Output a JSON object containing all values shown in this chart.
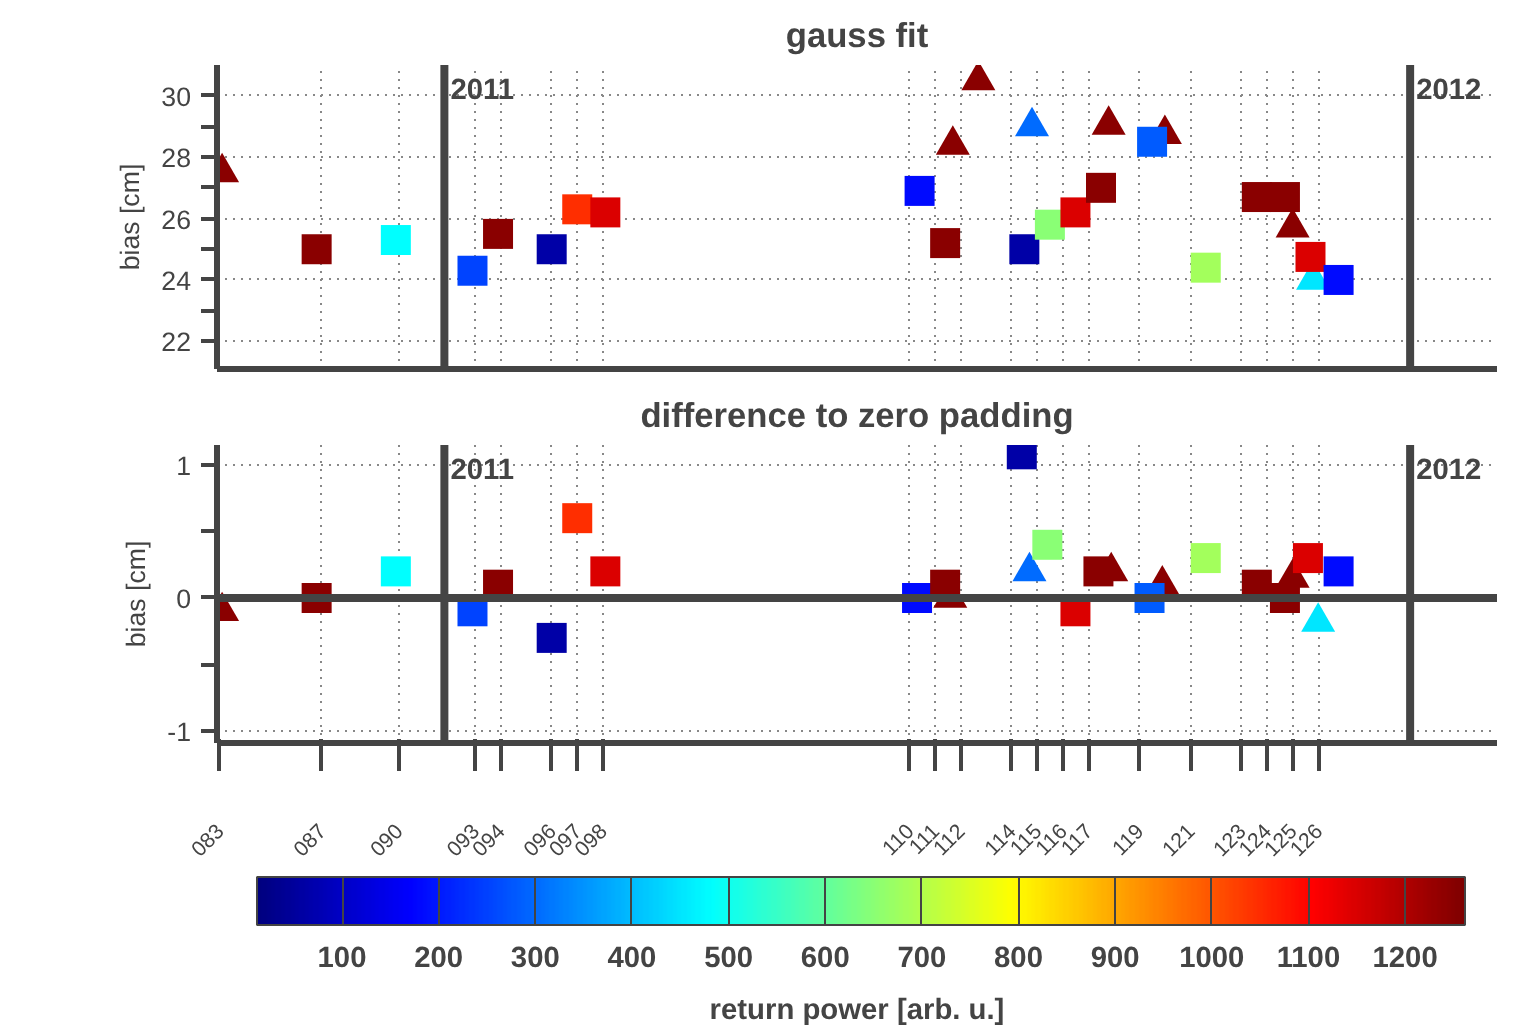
{
  "chart_data": [
    {
      "type": "scatter",
      "title": "gauss fit",
      "ylabel": "bias [cm]",
      "xlim": [
        82.9,
        133.0
      ],
      "ylim": [
        21.1,
        31.0
      ],
      "xticks": [
        {
          "value": 83,
          "label": null
        },
        {
          "value": 87,
          "label": null
        },
        {
          "value": 90,
          "label": null
        },
        {
          "value": 93,
          "label": null
        },
        {
          "value": 94,
          "label": null
        },
        {
          "value": 96,
          "label": null
        },
        {
          "value": 97,
          "label": null
        },
        {
          "value": 98,
          "label": null
        },
        {
          "value": 110,
          "label": null
        },
        {
          "value": 111,
          "label": null
        },
        {
          "value": 112,
          "label": null
        },
        {
          "value": 114,
          "label": null
        },
        {
          "value": 115,
          "label": null
        },
        {
          "value": 116,
          "label": null
        },
        {
          "value": 117,
          "label": null
        },
        {
          "value": 119,
          "label": null
        },
        {
          "value": 121,
          "label": null
        },
        {
          "value": 123,
          "label": null
        },
        {
          "value": 124,
          "label": null
        },
        {
          "value": 125,
          "label": null
        },
        {
          "value": 126,
          "label": null
        }
      ],
      "yticks": [
        22,
        {
          "value": 23,
          "label": null
        },
        24,
        {
          "value": 25,
          "label": null
        },
        26,
        {
          "value": 27,
          "label": null
        },
        28,
        {
          "value": 29,
          "label": null
        },
        30
      ],
      "tick_labels": "y",
      "grid": true,
      "ref_lines": [
        {
          "axis": "x",
          "value": 91.8,
          "color": "#444444"
        },
        {
          "axis": "x",
          "value": 129.6,
          "color": "#444444"
        }
      ],
      "annotations": [
        "2011",
        "2012"
      ],
      "series": [
        {
          "marker": "triangle",
          "x": [
            83.1,
            111.7,
            112.7,
            114.8,
            117.8,
            120.0,
            125.0,
            125.8
          ],
          "values": [
            27.5,
            28.4,
            30.5,
            29.0,
            29.05,
            28.75,
            25.7,
            24.0
          ],
          "colors": [
            "#8a0000",
            "#8a0000",
            "#8a0000",
            "#006bff",
            "#8a0000",
            "#8a0000",
            "#8a0000",
            "#00e6ff"
          ]
        },
        {
          "marker": "square",
          "x": [
            86.8,
            89.9,
            92.9,
            93.9,
            96.0,
            97.0,
            98.1,
            110.4,
            111.4,
            114.5,
            115.5,
            116.5,
            117.5,
            119.5,
            121.6,
            123.6,
            124.7,
            125.7,
            126.8
          ],
          "values": [
            25.0,
            25.3,
            24.3,
            25.5,
            25.0,
            26.3,
            26.2,
            26.9,
            25.2,
            25.0,
            25.8,
            26.2,
            27.0,
            28.5,
            24.4,
            26.7,
            26.7,
            24.75,
            24.0
          ],
          "colors": [
            "#8a0000",
            "#00ffff",
            "#0043ff",
            "#8a0000",
            "#0000a7",
            "#ff2e00",
            "#db0000",
            "#000aff",
            "#8a0000",
            "#0000a7",
            "#8aff75",
            "#db0000",
            "#8a0000",
            "#005bff",
            "#a3ff5c",
            "#8a0000",
            "#8a0000",
            "#db0000",
            "#000aff"
          ]
        }
      ]
    },
    {
      "type": "scatter",
      "title": "difference to zero padding",
      "ylabel": "bias [cm]",
      "xlim": [
        82.9,
        133.0
      ],
      "ylim": [
        -1.09,
        1.15
      ],
      "xticks": [
        {
          "value": 83,
          "label": "083"
        },
        {
          "value": 87,
          "label": "087"
        },
        {
          "value": 90,
          "label": "090"
        },
        {
          "value": 93,
          "label": "093"
        },
        {
          "value": 94,
          "label": "094"
        },
        {
          "value": 96,
          "label": "096"
        },
        {
          "value": 97,
          "label": "097"
        },
        {
          "value": 98,
          "label": "098"
        },
        {
          "value": 110,
          "label": "110"
        },
        {
          "value": 111,
          "label": "111"
        },
        {
          "value": 112,
          "label": "112"
        },
        {
          "value": 114,
          "label": "114"
        },
        {
          "value": 115,
          "label": "115"
        },
        {
          "value": 116,
          "label": "116"
        },
        {
          "value": 117,
          "label": "117"
        },
        {
          "value": 119,
          "label": "119"
        },
        {
          "value": 121,
          "label": "121"
        },
        {
          "value": 123,
          "label": "123"
        },
        {
          "value": 124,
          "label": "124"
        },
        {
          "value": 125,
          "label": "125"
        },
        {
          "value": 126,
          "label": "126"
        }
      ],
      "yticks": [
        -1,
        {
          "value": -0.5,
          "label": null
        },
        0,
        {
          "value": 0.5,
          "label": null
        },
        1
      ],
      "grid": true,
      "clim": [
        12,
        1262
      ],
      "cticks": [
        100,
        200,
        300,
        400,
        500,
        600,
        700,
        800,
        900,
        1000,
        1100,
        1200
      ],
      "clabel": "return power [arb. u.]",
      "ref_lines": [
        {
          "axis": "x",
          "value": 91.8,
          "color": "#444444"
        },
        {
          "axis": "x",
          "value": 129.6,
          "color": "#444444"
        },
        {
          "axis": "y",
          "value": 0,
          "color": "#444444"
        }
      ],
      "annotations": [
        "2011",
        "2012"
      ],
      "series": [
        {
          "marker": "triangle",
          "x": [
            83.1,
            111.6,
            114.7,
            117.9,
            119.9,
            125.0,
            126.0
          ],
          "values": [
            -0.1,
            0.0,
            0.2,
            0.2,
            0.1,
            0.15,
            -0.18
          ],
          "colors": [
            "#8a0000",
            "#8a0000",
            "#006bff",
            "#8a0000",
            "#8a0000",
            "#8a0000",
            "#00e6ff"
          ]
        },
        {
          "marker": "square",
          "x": [
            86.8,
            89.9,
            92.9,
            93.9,
            96.0,
            97.0,
            98.1,
            110.3,
            111.4,
            114.4,
            115.4,
            116.5,
            117.4,
            119.4,
            121.6,
            123.6,
            124.7,
            125.6,
            126.8
          ],
          "values": [
            0.0,
            0.2,
            -0.1,
            0.1,
            -0.3,
            0.6,
            0.2,
            0.0,
            0.1,
            1.08,
            0.4,
            -0.1,
            0.2,
            0.0,
            0.3,
            0.1,
            0.0,
            0.3,
            0.2
          ],
          "colors": [
            "#8a0000",
            "#00ffff",
            "#0043ff",
            "#8a0000",
            "#0000a7",
            "#ff2e00",
            "#db0000",
            "#000aff",
            "#8a0000",
            "#0000a7",
            "#8aff75",
            "#db0000",
            "#8a0000",
            "#005bff",
            "#a3ff5c",
            "#8a0000",
            "#8a0000",
            "#db0000",
            "#000aff"
          ]
        }
      ]
    }
  ]
}
